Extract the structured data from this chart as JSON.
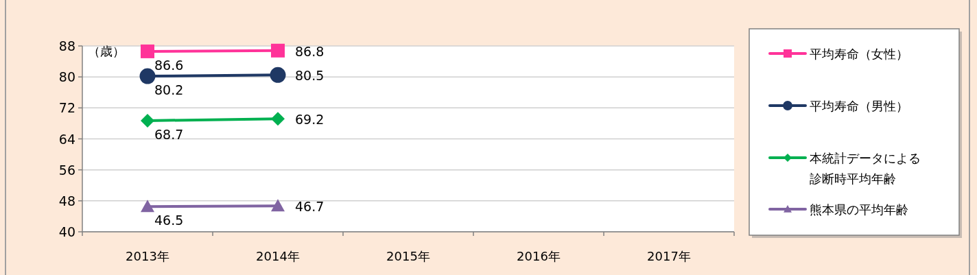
{
  "chart_data": {
    "type": "line",
    "ylabel": "（歳）",
    "categories": [
      "2013年",
      "2014年",
      "2015年",
      "2016年",
      "2017年"
    ],
    "series": [
      {
        "name": "平均寿命（女性）",
        "color": "#ff3399",
        "marker": "square",
        "values": [
          86.6,
          86.8,
          null,
          null,
          null
        ]
      },
      {
        "name": "平均寿命（男性）",
        "color": "#1f3864",
        "marker": "circle",
        "values": [
          80.2,
          80.5,
          null,
          null,
          null
        ]
      },
      {
        "name": "本統計データによる診断時平均年齢",
        "color": "#00b050",
        "marker": "diamond",
        "values": [
          68.7,
          69.2,
          null,
          null,
          null
        ]
      },
      {
        "name": "熊本県の平均年齢",
        "color": "#8064a2",
        "marker": "triangle",
        "values": [
          46.5,
          46.7,
          null,
          null,
          null
        ]
      }
    ],
    "ylim": [
      40,
      88
    ],
    "yticks": [
      40,
      48,
      56,
      64,
      72,
      80,
      88
    ],
    "grid": "y",
    "legend": "right",
    "data_labels": true
  }
}
